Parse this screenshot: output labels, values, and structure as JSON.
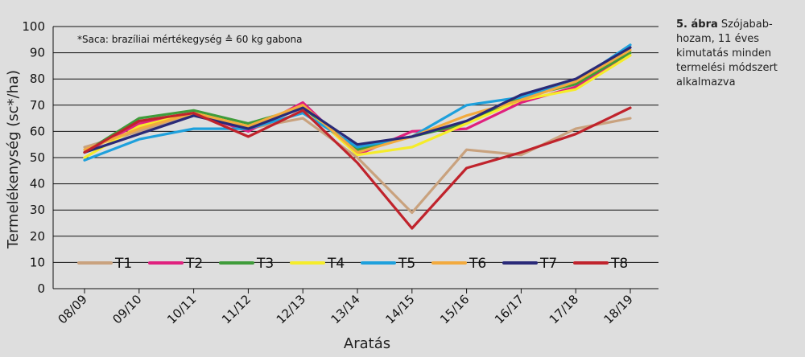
{
  "caption": {
    "label": "5. ábra",
    "text": "Szójabab-hozam, 11 éves kimutatás minden termelési módszert alkalmazva"
  },
  "chart_data": {
    "type": "line",
    "note": "*Saca: brazíliai mértékegység ≙ 60 kg gabona",
    "xlabel": "Aratás",
    "ylabel": "Termelékenység (sc*/ha)",
    "ylim": [
      0,
      100
    ],
    "yticks": [
      0,
      10,
      20,
      30,
      40,
      50,
      60,
      70,
      80,
      90,
      100
    ],
    "grid": true,
    "legend_position": "bottom-inside",
    "categories": [
      "08/09",
      "09/10",
      "10/11",
      "11/12",
      "12/13",
      "13/14",
      "14/15",
      "15/16",
      "16/17",
      "17/18",
      "18/19"
    ],
    "series": [
      {
        "name": "T1",
        "color": "#c9a27e",
        "values": [
          54,
          60,
          67,
          61,
          65,
          50,
          29,
          53,
          51,
          61,
          65
        ]
      },
      {
        "name": "T2",
        "color": "#e0207e",
        "values": [
          52,
          63,
          67,
          60,
          71,
          51,
          60,
          61,
          71,
          77,
          90
        ]
      },
      {
        "name": "T3",
        "color": "#3f9c3a",
        "values": [
          52,
          65,
          68,
          63,
          69,
          53,
          58,
          63,
          73,
          78,
          90
        ]
      },
      {
        "name": "T4",
        "color": "#f5ec2a",
        "values": [
          50,
          62,
          67,
          62,
          70,
          51,
          54,
          63,
          72,
          76,
          89
        ]
      },
      {
        "name": "T5",
        "color": "#1ea0dc",
        "values": [
          49,
          57,
          61,
          61,
          67,
          54,
          58,
          70,
          73,
          79,
          93
        ]
      },
      {
        "name": "T6",
        "color": "#f2aa3e",
        "values": [
          53,
          61,
          67,
          62,
          70,
          52,
          58,
          66,
          72,
          79,
          91
        ]
      },
      {
        "name": "T7",
        "color": "#2a2a78",
        "values": [
          52,
          59,
          66,
          61,
          69,
          55,
          58,
          64,
          74,
          80,
          92
        ]
      },
      {
        "name": "T8",
        "color": "#c0232c",
        "values": [
          52,
          64,
          67,
          58,
          68,
          48,
          23,
          46,
          52,
          59,
          69
        ]
      }
    ]
  }
}
